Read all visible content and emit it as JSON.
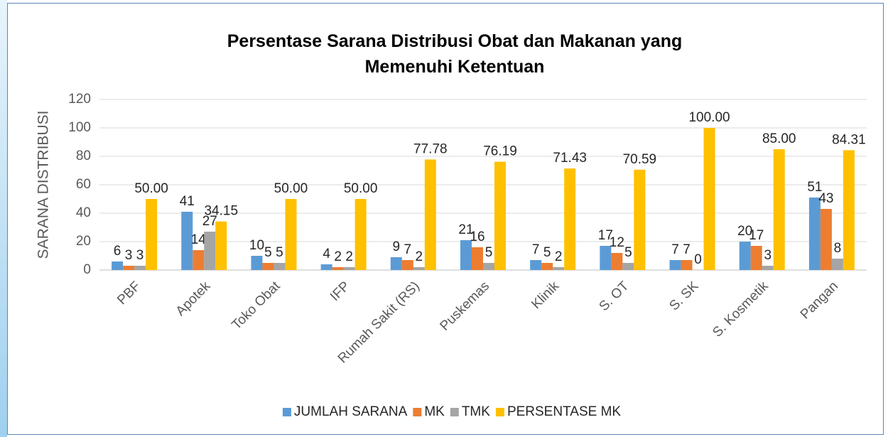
{
  "chart_data": {
    "type": "bar",
    "title": "Persentase Sarana Distribusi Obat dan Makanan yang Memenuhi Ketentuan",
    "y_label": "SARANA DISTRIBUSI",
    "categories": [
      "PBF",
      "Apotek",
      "Toko Obat",
      "IFP",
      "Rumah Sakit (RS)",
      "Puskemas",
      "Klinik",
      "S. OT",
      "S. SK",
      "S. Kosmetik",
      "Pangan"
    ],
    "series": [
      {
        "name": "JUMLAH SARANA",
        "color": "#5b9bd5",
        "values": [
          6,
          41,
          10,
          4,
          9,
          21,
          7,
          17,
          7,
          20,
          51
        ]
      },
      {
        "name": "MK",
        "color": "#ed7d31",
        "values": [
          3,
          14,
          5,
          2,
          7,
          16,
          5,
          12,
          7,
          17,
          43
        ]
      },
      {
        "name": "TMK",
        "color": "#a5a5a5",
        "values": [
          3,
          27,
          5,
          2,
          2,
          5,
          2,
          5,
          0,
          3,
          8
        ]
      },
      {
        "name": "PERSENTASE MK",
        "color": "#ffc000",
        "values": [
          50,
          34.15,
          50,
          50,
          77.78,
          76.19,
          71.43,
          70.59,
          100,
          85,
          84.31
        ],
        "value_labels": [
          "50.00",
          "34.15",
          "50.00",
          "50.00",
          "77.78",
          "76.19",
          "71.43",
          "70.59",
          "100.00",
          "85.00",
          "84.31"
        ]
      }
    ],
    "ylim": [
      0,
      120
    ],
    "yticks": [
      0,
      20,
      40,
      60,
      80,
      100,
      120
    ],
    "grid": true,
    "legend": "bottom"
  }
}
